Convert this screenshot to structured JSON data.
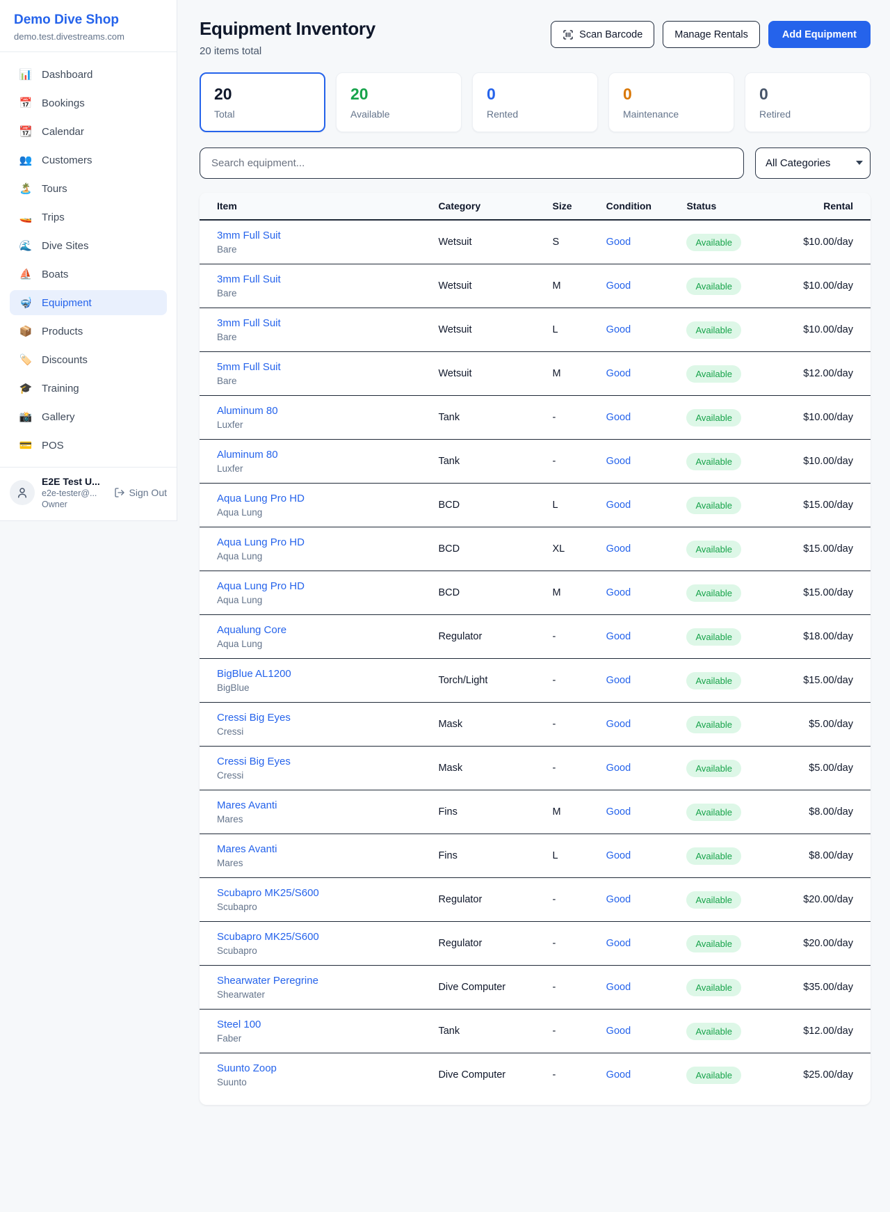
{
  "colors": {
    "accent": "#2563eb",
    "available_green": "#16a34a",
    "rented_blue": "#2563eb",
    "maintenance_orange": "#d97706",
    "retired_gray": "#475569",
    "badge_bg": "#dcfce7",
    "badge_text": "#17a34a"
  },
  "sidebar": {
    "brand": {
      "title": "Demo Dive Shop",
      "domain": "demo.test.divestreams.com"
    },
    "nav": [
      {
        "name": "dashboard",
        "icon_name": "bar-chart-icon",
        "icon": "📊",
        "label": "Dashboard",
        "active": false
      },
      {
        "name": "bookings",
        "icon_name": "calendar-date-icon",
        "icon": "📅",
        "label": "Bookings",
        "active": false
      },
      {
        "name": "calendar",
        "icon_name": "calendar-icon",
        "icon": "📆",
        "label": "Calendar",
        "active": false
      },
      {
        "name": "customers",
        "icon_name": "people-icon",
        "icon": "👥",
        "label": "Customers",
        "active": false
      },
      {
        "name": "tours",
        "icon_name": "island-icon",
        "icon": "🏝️",
        "label": "Tours",
        "active": false
      },
      {
        "name": "trips",
        "icon_name": "speedboat-icon",
        "icon": "🚤",
        "label": "Trips",
        "active": false
      },
      {
        "name": "dive-sites",
        "icon_name": "wave-icon",
        "icon": "🌊",
        "label": "Dive Sites",
        "active": false
      },
      {
        "name": "boats",
        "icon_name": "sailboat-icon",
        "icon": "⛵",
        "label": "Boats",
        "active": false
      },
      {
        "name": "equipment",
        "icon_name": "diving-mask-icon",
        "icon": "🤿",
        "label": "Equipment",
        "active": true
      },
      {
        "name": "products",
        "icon_name": "package-icon",
        "icon": "📦",
        "label": "Products",
        "active": false
      },
      {
        "name": "discounts",
        "icon_name": "tag-icon",
        "icon": "🏷️",
        "label": "Discounts",
        "active": false
      },
      {
        "name": "training",
        "icon_name": "graduation-cap-icon",
        "icon": "🎓",
        "label": "Training",
        "active": false
      },
      {
        "name": "gallery",
        "icon_name": "camera-icon",
        "icon": "📸",
        "label": "Gallery",
        "active": false
      },
      {
        "name": "pos",
        "icon_name": "credit-card-icon",
        "icon": "💳",
        "label": "POS",
        "active": false
      }
    ],
    "user": {
      "name": "E2E Test U...",
      "email": "e2e-tester@...",
      "role": "Owner",
      "signout_label": "Sign Out"
    }
  },
  "header": {
    "title": "Equipment Inventory",
    "subtitle": "20 items total",
    "scan_label": "Scan Barcode",
    "manage_label": "Manage Rentals",
    "add_label": "Add Equipment"
  },
  "stats": [
    {
      "value": "20",
      "label": "Total",
      "color": "#0f172a",
      "active": true
    },
    {
      "value": "20",
      "label": "Available",
      "color": "#16a34a",
      "active": false
    },
    {
      "value": "0",
      "label": "Rented",
      "color": "#2563eb",
      "active": false
    },
    {
      "value": "0",
      "label": "Maintenance",
      "color": "#d97706",
      "active": false
    },
    {
      "value": "0",
      "label": "Retired",
      "color": "#475569",
      "active": false
    }
  ],
  "filters": {
    "search_placeholder": "Search equipment...",
    "category_selected": "All Categories"
  },
  "table": {
    "columns": [
      "Item",
      "Category",
      "Size",
      "Condition",
      "Status",
      "Rental"
    ],
    "rows": [
      {
        "name": "3mm Full Suit",
        "brand": "Bare",
        "category": "Wetsuit",
        "size": "S",
        "condition": "Good",
        "status": "Available",
        "rental": "$10.00/day"
      },
      {
        "name": "3mm Full Suit",
        "brand": "Bare",
        "category": "Wetsuit",
        "size": "M",
        "condition": "Good",
        "status": "Available",
        "rental": "$10.00/day"
      },
      {
        "name": "3mm Full Suit",
        "brand": "Bare",
        "category": "Wetsuit",
        "size": "L",
        "condition": "Good",
        "status": "Available",
        "rental": "$10.00/day"
      },
      {
        "name": "5mm Full Suit",
        "brand": "Bare",
        "category": "Wetsuit",
        "size": "M",
        "condition": "Good",
        "status": "Available",
        "rental": "$12.00/day"
      },
      {
        "name": "Aluminum 80",
        "brand": "Luxfer",
        "category": "Tank",
        "size": "-",
        "condition": "Good",
        "status": "Available",
        "rental": "$10.00/day"
      },
      {
        "name": "Aluminum 80",
        "brand": "Luxfer",
        "category": "Tank",
        "size": "-",
        "condition": "Good",
        "status": "Available",
        "rental": "$10.00/day"
      },
      {
        "name": "Aqua Lung Pro HD",
        "brand": "Aqua Lung",
        "category": "BCD",
        "size": "L",
        "condition": "Good",
        "status": "Available",
        "rental": "$15.00/day"
      },
      {
        "name": "Aqua Lung Pro HD",
        "brand": "Aqua Lung",
        "category": "BCD",
        "size": "XL",
        "condition": "Good",
        "status": "Available",
        "rental": "$15.00/day"
      },
      {
        "name": "Aqua Lung Pro HD",
        "brand": "Aqua Lung",
        "category": "BCD",
        "size": "M",
        "condition": "Good",
        "status": "Available",
        "rental": "$15.00/day"
      },
      {
        "name": "Aqualung Core",
        "brand": "Aqua Lung",
        "category": "Regulator",
        "size": "-",
        "condition": "Good",
        "status": "Available",
        "rental": "$18.00/day"
      },
      {
        "name": "BigBlue AL1200",
        "brand": "BigBlue",
        "category": "Torch/Light",
        "size": "-",
        "condition": "Good",
        "status": "Available",
        "rental": "$15.00/day"
      },
      {
        "name": "Cressi Big Eyes",
        "brand": "Cressi",
        "category": "Mask",
        "size": "-",
        "condition": "Good",
        "status": "Available",
        "rental": "$5.00/day"
      },
      {
        "name": "Cressi Big Eyes",
        "brand": "Cressi",
        "category": "Mask",
        "size": "-",
        "condition": "Good",
        "status": "Available",
        "rental": "$5.00/day"
      },
      {
        "name": "Mares Avanti",
        "brand": "Mares",
        "category": "Fins",
        "size": "M",
        "condition": "Good",
        "status": "Available",
        "rental": "$8.00/day"
      },
      {
        "name": "Mares Avanti",
        "brand": "Mares",
        "category": "Fins",
        "size": "L",
        "condition": "Good",
        "status": "Available",
        "rental": "$8.00/day"
      },
      {
        "name": "Scubapro MK25/S600",
        "brand": "Scubapro",
        "category": "Regulator",
        "size": "-",
        "condition": "Good",
        "status": "Available",
        "rental": "$20.00/day"
      },
      {
        "name": "Scubapro MK25/S600",
        "brand": "Scubapro",
        "category": "Regulator",
        "size": "-",
        "condition": "Good",
        "status": "Available",
        "rental": "$20.00/day"
      },
      {
        "name": "Shearwater Peregrine",
        "brand": "Shearwater",
        "category": "Dive Computer",
        "size": "-",
        "condition": "Good",
        "status": "Available",
        "rental": "$35.00/day"
      },
      {
        "name": "Steel 100",
        "brand": "Faber",
        "category": "Tank",
        "size": "-",
        "condition": "Good",
        "status": "Available",
        "rental": "$12.00/day"
      },
      {
        "name": "Suunto Zoop",
        "brand": "Suunto",
        "category": "Dive Computer",
        "size": "-",
        "condition": "Good",
        "status": "Available",
        "rental": "$25.00/day"
      }
    ]
  }
}
